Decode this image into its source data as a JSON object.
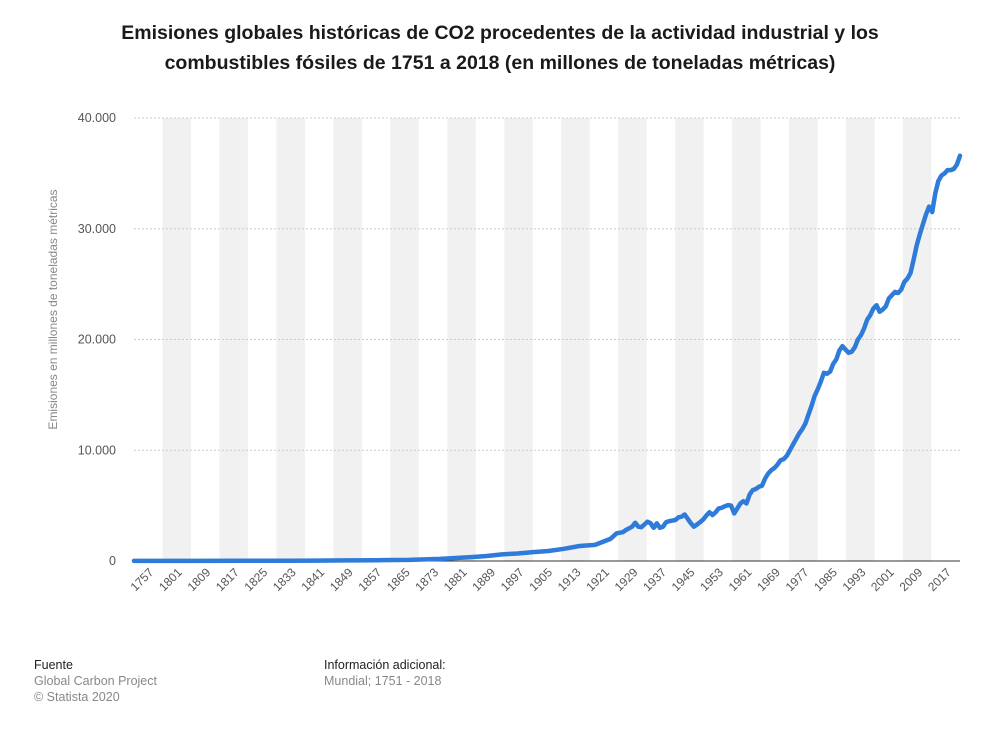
{
  "title_line1": "Emisiones globales históricas de CO2 procedentes de la actividad industrial y los",
  "title_line2": "combustibles fósiles de 1751 a 2018 (en millones de toneladas métricas)",
  "source": {
    "heading": "Fuente",
    "line1": "Global Carbon Project",
    "line2": "© Statista 2020"
  },
  "additional_info": {
    "heading": "Información adicional:",
    "line1": "Mundial; 1751 - 2018"
  },
  "colors": {
    "line": "#2e7bd9",
    "band": "#f1f1f1",
    "grid": "#cccccc",
    "axis_text": "#555555"
  },
  "chart_data": {
    "type": "line",
    "title": "Emisiones globales históricas de CO2 procedentes de la actividad industrial y los combustibles fósiles de 1751 a 2018 (en millones de toneladas métricas)",
    "xlabel": "",
    "ylabel": "Emisiones en millones de toneladas métricas",
    "ylim": [
      0,
      40000
    ],
    "y_ticks": [
      0,
      10000,
      20000,
      30000,
      40000
    ],
    "y_tick_labels": [
      "0",
      "10.000",
      "20.000",
      "30.000",
      "40.000"
    ],
    "x_tick_labels": [
      "1757",
      "1801",
      "1809",
      "1817",
      "1825",
      "1833",
      "1841",
      "1849",
      "1857",
      "1865",
      "1873",
      "1881",
      "1889",
      "1897",
      "1905",
      "1913",
      "1921",
      "1929",
      "1937",
      "1945",
      "1953",
      "1961",
      "1969",
      "1977",
      "1985",
      "1993",
      "2001",
      "2009",
      "2017"
    ],
    "grid": true,
    "legend": "none",
    "series": [
      {
        "x": [
          1751,
          1757,
          1770,
          1790,
          1801,
          1810,
          1820,
          1830,
          1840,
          1850,
          1855,
          1860,
          1865,
          1870,
          1875,
          1880,
          1885,
          1890,
          1895,
          1900,
          1905,
          1907,
          1909,
          1910,
          1912,
          1913,
          1914,
          1915,
          1916,
          1917,
          1918,
          1919,
          1920,
          1921,
          1922,
          1923,
          1924,
          1925,
          1926,
          1927,
          1928,
          1929,
          1930,
          1931,
          1932,
          1933,
          1934,
          1935,
          1936,
          1937,
          1938,
          1939,
          1940,
          1941,
          1942,
          1943,
          1944,
          1945,
          1946,
          1947,
          1948,
          1949,
          1950,
          1951,
          1952,
          1953,
          1954,
          1955,
          1956,
          1957,
          1958,
          1959,
          1960,
          1961,
          1962,
          1963,
          1964,
          1965,
          1966,
          1967,
          1968,
          1969,
          1970,
          1971,
          1972,
          1973,
          1974,
          1975,
          1976,
          1977,
          1978,
          1979,
          1980,
          1981,
          1982,
          1983,
          1984,
          1985,
          1986,
          1987,
          1988,
          1989,
          1990,
          1991,
          1992,
          1993,
          1994,
          1995,
          1996,
          1997,
          1998,
          1999,
          2000,
          2001,
          2002,
          2003,
          2004,
          2005,
          2006,
          2007,
          2008,
          2009,
          2010,
          2011,
          2012,
          2013,
          2014,
          2015,
          2016,
          2017,
          2018
        ],
        "y": [
          10,
          11,
          13,
          18,
          25,
          40,
          50,
          70,
          100,
          190,
          270,
          350,
          450,
          600,
          680,
          800,
          900,
          1100,
          1350,
          1450,
          2000,
          2500,
          2600,
          2800,
          3100,
          3450,
          3100,
          3050,
          3300,
          3550,
          3400,
          3000,
          3400,
          3000,
          3100,
          3500,
          3600,
          3650,
          3700,
          3950,
          4000,
          4200,
          3800,
          3400,
          3100,
          3300,
          3500,
          3750,
          4100,
          4400,
          4150,
          4400,
          4750,
          4800,
          4950,
          5050,
          5000,
          4300,
          4750,
          5200,
          5400,
          5200,
          6000,
          6400,
          6500,
          6700,
          6800,
          7450,
          7900,
          8200,
          8400,
          8700,
          9100,
          9200,
          9500,
          10000,
          10500,
          11000,
          11500,
          11900,
          12400,
          13200,
          14000,
          14900,
          15500,
          16200,
          17000,
          16900,
          17100,
          17800,
          18200,
          19000,
          19400,
          19100,
          18800,
          18900,
          19300,
          20000,
          20400,
          21000,
          21800,
          22200,
          22800,
          23100,
          22500,
          22700,
          23000,
          23700,
          24000,
          24300,
          24200,
          24500,
          25200,
          25500,
          26000,
          27200,
          28500,
          29500,
          30400,
          31300,
          32000,
          31500,
          33200,
          34300,
          34800,
          35000,
          35300,
          35300,
          35400,
          35800,
          36600
        ]
      }
    ]
  }
}
